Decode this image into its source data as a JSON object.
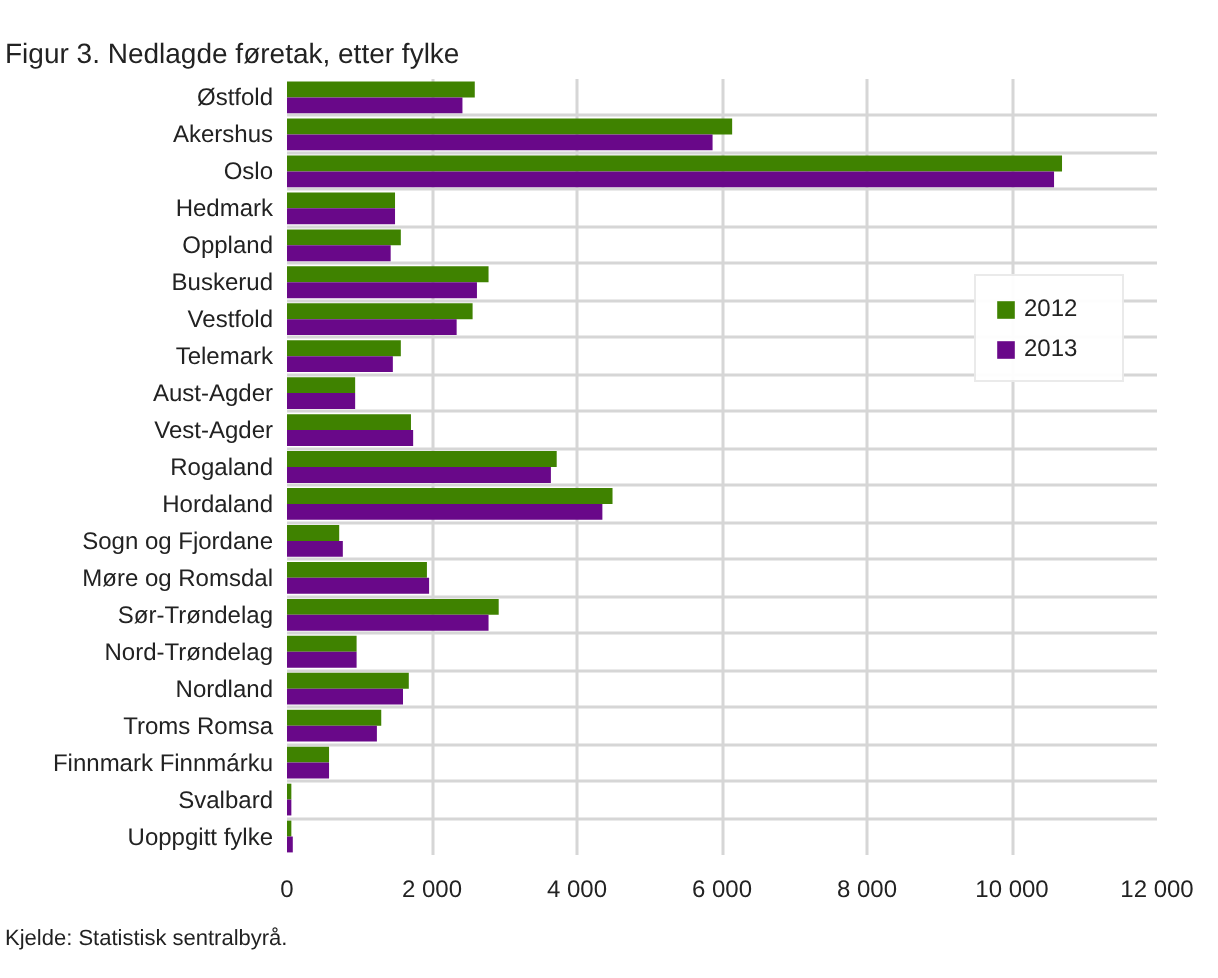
{
  "chart_data": {
    "type": "bar",
    "orientation": "horizontal",
    "title": "Figur 3. Nedlagde føretak, etter fylke",
    "categories": [
      "Østfold",
      "Akershus",
      "Oslo",
      "Hedmark",
      "Oppland",
      "Buskerud",
      "Vestfold",
      "Telemark",
      "Aust-Agder",
      "Vest-Agder",
      "Rogaland",
      "Hordaland",
      "Sogn og Fjordane",
      "Møre og Romsdal",
      "Sør-Trøndelag",
      "Nord-Trøndelag",
      "Nordland",
      "Troms Romsa",
      "Finnmark Finnmárku",
      "Svalbard",
      "Uoppgitt fylke"
    ],
    "series": [
      {
        "name": "2012",
        "color": "#3f8200",
        "values": [
          2590,
          6140,
          10690,
          1490,
          1570,
          2780,
          2560,
          1570,
          940,
          1710,
          3720,
          4490,
          720,
          1930,
          2920,
          960,
          1680,
          1300,
          580,
          60,
          60
        ]
      },
      {
        "name": "2013",
        "color": "#690889",
        "values": [
          2420,
          5870,
          10580,
          1490,
          1430,
          2620,
          2340,
          1460,
          940,
          1740,
          3640,
          4350,
          770,
          1960,
          2780,
          960,
          1600,
          1240,
          580,
          60,
          80
        ]
      }
    ],
    "xlim": [
      0,
      12000
    ],
    "xticks": [
      0,
      {
        "value": 2000,
        "label": "2 000"
      },
      {
        "value": 4000,
        "label": "4 000"
      },
      {
        "value": 6000,
        "label": "6 000"
      },
      {
        "value": 8000,
        "label": "8 000"
      },
      {
        "value": 10000,
        "label": "10 000"
      },
      {
        "value": 12000,
        "label": "12 000"
      }
    ],
    "grid": true,
    "legend": "right",
    "annotations": [
      "Kjelde: Statistisk sentralbyrå."
    ]
  }
}
